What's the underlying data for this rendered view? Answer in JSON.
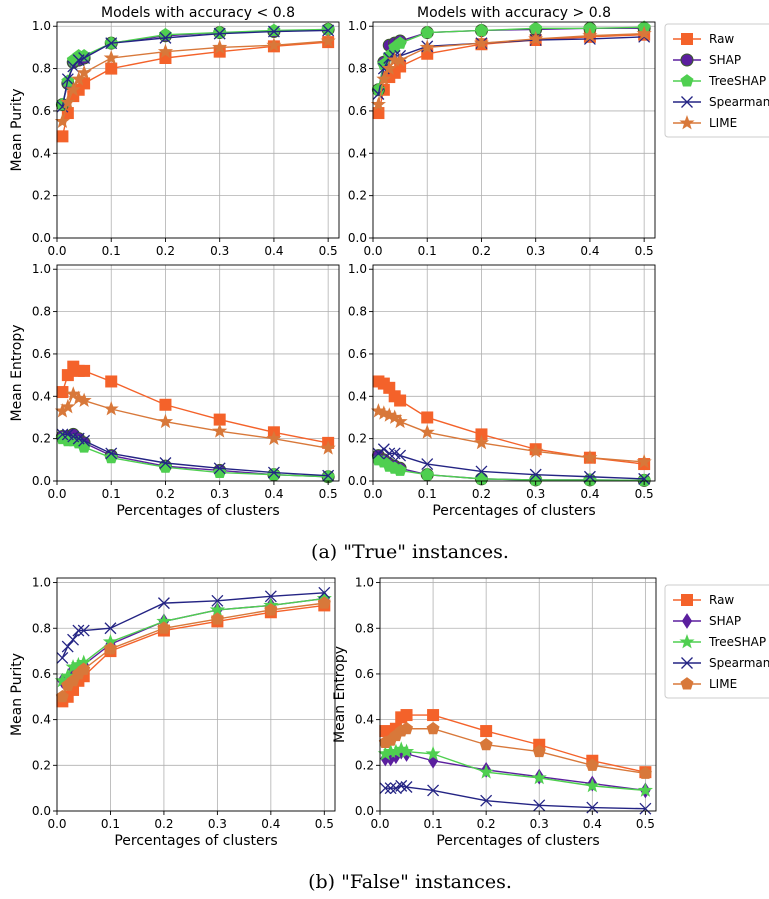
{
  "colors": {
    "Raw": "#f4622a",
    "SHAP": "#5b1f9e",
    "TreeSHAP": "#4fcf50",
    "Spearman": "#242484",
    "LIME": "#d8783a"
  },
  "captions": {
    "a": "(a) \"True\" instances.",
    "b": "(b) \"False\" instances."
  },
  "chart_data": [
    {
      "id": "a-purity-low",
      "type": "line",
      "title": "Models with accuracy < 0.8",
      "xlabel": "",
      "ylabel": "Mean Purity",
      "xlim": [
        0,
        0.52
      ],
      "ylim": [
        0,
        1.02
      ],
      "xticks": [
        0.0,
        0.1,
        0.2,
        0.3,
        0.4,
        0.5
      ],
      "yticks": [
        0.0,
        0.2,
        0.4,
        0.6,
        0.8,
        1.0
      ],
      "grid": true,
      "legend": "right-outside",
      "markers": {
        "Raw": "square",
        "SHAP": "circle",
        "TreeSHAP": "pentagon",
        "Spearman": "x",
        "LIME": "star"
      },
      "x": [
        0.01,
        0.02,
        0.03,
        0.04,
        0.05,
        0.1,
        0.2,
        0.3,
        0.4,
        0.5
      ],
      "series": [
        {
          "name": "Raw",
          "values": [
            0.48,
            0.59,
            0.67,
            0.7,
            0.73,
            0.8,
            0.85,
            0.88,
            0.905,
            0.925
          ]
        },
        {
          "name": "SHAP",
          "values": [
            0.63,
            0.73,
            0.83,
            0.84,
            0.85,
            0.92,
            0.955,
            0.97,
            0.975,
            0.985
          ]
        },
        {
          "name": "TreeSHAP",
          "values": [
            0.63,
            0.74,
            0.84,
            0.86,
            0.86,
            0.92,
            0.96,
            0.97,
            0.98,
            0.985
          ]
        },
        {
          "name": "Spearman",
          "values": [
            0.62,
            0.75,
            0.81,
            0.84,
            0.85,
            0.92,
            0.945,
            0.965,
            0.975,
            0.98
          ]
        },
        {
          "name": "LIME",
          "values": [
            0.55,
            0.64,
            0.7,
            0.75,
            0.78,
            0.85,
            0.88,
            0.9,
            0.91,
            0.93
          ]
        }
      ]
    },
    {
      "id": "a-purity-high",
      "type": "line",
      "title": "Models with accuracy > 0.8",
      "xlabel": "",
      "ylabel": "",
      "xlim": [
        0,
        0.52
      ],
      "ylim": [
        0,
        1.02
      ],
      "xticks": [
        0.0,
        0.1,
        0.2,
        0.3,
        0.4,
        0.5
      ],
      "yticks": [
        0.0,
        0.2,
        0.4,
        0.6,
        0.8,
        1.0
      ],
      "grid": true,
      "markers": {
        "Raw": "square",
        "SHAP": "circle",
        "TreeSHAP": "pentagon",
        "Spearman": "x",
        "LIME": "star"
      },
      "x": [
        0.01,
        0.02,
        0.03,
        0.04,
        0.05,
        0.1,
        0.2,
        0.3,
        0.4,
        0.5
      ],
      "series": [
        {
          "name": "Raw",
          "values": [
            0.59,
            0.7,
            0.76,
            0.78,
            0.81,
            0.87,
            0.915,
            0.935,
            0.95,
            0.96
          ]
        },
        {
          "name": "SHAP",
          "values": [
            0.7,
            0.83,
            0.91,
            0.92,
            0.93,
            0.97,
            0.98,
            0.985,
            0.99,
            0.99
          ]
        },
        {
          "name": "TreeSHAP",
          "values": [
            0.7,
            0.82,
            0.86,
            0.9,
            0.92,
            0.97,
            0.98,
            0.99,
            0.99,
            0.995
          ]
        },
        {
          "name": "Spearman",
          "values": [
            0.68,
            0.8,
            0.85,
            0.86,
            0.86,
            0.905,
            0.92,
            0.935,
            0.94,
            0.95
          ]
        },
        {
          "name": "LIME",
          "values": [
            0.63,
            0.75,
            0.8,
            0.84,
            0.84,
            0.9,
            0.92,
            0.94,
            0.955,
            0.965
          ]
        }
      ]
    },
    {
      "id": "a-entropy-low",
      "type": "line",
      "title": "",
      "xlabel": "Percentages of clusters",
      "ylabel": "Mean Entropy",
      "xlim": [
        0,
        0.52
      ],
      "ylim": [
        0,
        1.02
      ],
      "xticks": [
        0.0,
        0.1,
        0.2,
        0.3,
        0.4,
        0.5
      ],
      "yticks": [
        0.0,
        0.2,
        0.4,
        0.6,
        0.8,
        1.0
      ],
      "grid": true,
      "markers": {
        "Raw": "square",
        "SHAP": "circle",
        "TreeSHAP": "pentagon",
        "Spearman": "x",
        "LIME": "star"
      },
      "x": [
        0.01,
        0.02,
        0.03,
        0.04,
        0.05,
        0.1,
        0.2,
        0.3,
        0.4,
        0.5
      ],
      "series": [
        {
          "name": "Raw",
          "values": [
            0.42,
            0.5,
            0.54,
            0.52,
            0.52,
            0.47,
            0.36,
            0.29,
            0.23,
            0.18
          ]
        },
        {
          "name": "SHAP",
          "values": [
            0.21,
            0.21,
            0.22,
            0.2,
            0.18,
            0.12,
            0.07,
            0.05,
            0.03,
            0.02
          ]
        },
        {
          "name": "TreeSHAP",
          "values": [
            0.2,
            0.19,
            0.19,
            0.18,
            0.16,
            0.11,
            0.065,
            0.04,
            0.03,
            0.02
          ]
        },
        {
          "name": "Spearman",
          "values": [
            0.22,
            0.22,
            0.21,
            0.2,
            0.19,
            0.13,
            0.085,
            0.06,
            0.04,
            0.025
          ]
        },
        {
          "name": "LIME",
          "values": [
            0.33,
            0.35,
            0.41,
            0.39,
            0.38,
            0.34,
            0.28,
            0.235,
            0.2,
            0.155
          ]
        }
      ]
    },
    {
      "id": "a-entropy-high",
      "type": "line",
      "title": "",
      "xlabel": "Percentages of clusters",
      "ylabel": "",
      "xlim": [
        0,
        0.52
      ],
      "ylim": [
        0,
        1.02
      ],
      "xticks": [
        0.0,
        0.1,
        0.2,
        0.3,
        0.4,
        0.5
      ],
      "yticks": [
        0.0,
        0.2,
        0.4,
        0.6,
        0.8,
        1.0
      ],
      "grid": true,
      "markers": {
        "Raw": "square",
        "SHAP": "circle",
        "TreeSHAP": "pentagon",
        "Spearman": "x",
        "LIME": "star"
      },
      "x": [
        0.01,
        0.02,
        0.03,
        0.04,
        0.05,
        0.1,
        0.2,
        0.3,
        0.4,
        0.5
      ],
      "series": [
        {
          "name": "Raw",
          "values": [
            0.47,
            0.46,
            0.44,
            0.4,
            0.38,
            0.3,
            0.22,
            0.15,
            0.11,
            0.08
          ]
        },
        {
          "name": "SHAP",
          "values": [
            0.12,
            0.1,
            0.08,
            0.07,
            0.06,
            0.03,
            0.01,
            0.005,
            0.005,
            0.003
          ]
        },
        {
          "name": "TreeSHAP",
          "values": [
            0.1,
            0.09,
            0.07,
            0.06,
            0.05,
            0.03,
            0.01,
            0.005,
            0.005,
            0.003
          ]
        },
        {
          "name": "Spearman",
          "values": [
            0.13,
            0.15,
            0.13,
            0.13,
            0.12,
            0.08,
            0.045,
            0.03,
            0.02,
            0.01
          ]
        },
        {
          "name": "LIME",
          "values": [
            0.33,
            0.32,
            0.31,
            0.3,
            0.28,
            0.23,
            0.18,
            0.14,
            0.11,
            0.09
          ]
        }
      ]
    },
    {
      "id": "b-purity",
      "type": "line",
      "title": "",
      "xlabel": "Percentages of clusters",
      "ylabel": "Mean Purity",
      "xlim": [
        0,
        0.52
      ],
      "ylim": [
        0,
        1.02
      ],
      "xticks": [
        0.0,
        0.1,
        0.2,
        0.3,
        0.4,
        0.5
      ],
      "yticks": [
        0.0,
        0.2,
        0.4,
        0.6,
        0.8,
        1.0
      ],
      "grid": true,
      "markers": {
        "Raw": "square",
        "SHAP": "diamond",
        "TreeSHAP": "star",
        "Spearman": "x",
        "LIME": "pentagon"
      },
      "x": [
        0.01,
        0.02,
        0.03,
        0.04,
        0.05,
        0.1,
        0.2,
        0.3,
        0.4,
        0.5
      ],
      "series": [
        {
          "name": "Raw",
          "values": [
            0.48,
            0.5,
            0.53,
            0.57,
            0.59,
            0.7,
            0.79,
            0.83,
            0.87,
            0.9
          ]
        },
        {
          "name": "SHAP",
          "values": [
            0.57,
            0.58,
            0.62,
            0.63,
            0.64,
            0.73,
            0.83,
            0.88,
            0.9,
            0.93
          ]
        },
        {
          "name": "TreeSHAP",
          "values": [
            0.57,
            0.59,
            0.63,
            0.64,
            0.65,
            0.74,
            0.83,
            0.88,
            0.9,
            0.93
          ]
        },
        {
          "name": "Spearman",
          "values": [
            0.67,
            0.72,
            0.75,
            0.79,
            0.79,
            0.8,
            0.91,
            0.92,
            0.94,
            0.955
          ]
        },
        {
          "name": "LIME",
          "values": [
            0.5,
            0.55,
            0.57,
            0.6,
            0.62,
            0.71,
            0.8,
            0.84,
            0.88,
            0.91
          ]
        }
      ]
    },
    {
      "id": "b-entropy",
      "type": "line",
      "title": "",
      "xlabel": "Percentages of clusters",
      "ylabel": "Mean Entropy",
      "xlim": [
        0,
        0.52
      ],
      "ylim": [
        0,
        1.02
      ],
      "xticks": [
        0.0,
        0.1,
        0.2,
        0.3,
        0.4,
        0.5
      ],
      "yticks": [
        0.0,
        0.2,
        0.4,
        0.6,
        0.8,
        1.0
      ],
      "grid": true,
      "legend": "right-outside",
      "markers": {
        "Raw": "square",
        "SHAP": "diamond",
        "TreeSHAP": "star",
        "Spearman": "x",
        "LIME": "pentagon"
      },
      "x": [
        0.01,
        0.02,
        0.03,
        0.04,
        0.05,
        0.1,
        0.2,
        0.3,
        0.4,
        0.5
      ],
      "series": [
        {
          "name": "Raw",
          "values": [
            0.35,
            0.34,
            0.36,
            0.41,
            0.42,
            0.42,
            0.35,
            0.29,
            0.22,
            0.17
          ]
        },
        {
          "name": "SHAP",
          "values": [
            0.23,
            0.23,
            0.24,
            0.26,
            0.25,
            0.22,
            0.18,
            0.15,
            0.12,
            0.09
          ]
        },
        {
          "name": "TreeSHAP",
          "values": [
            0.25,
            0.26,
            0.26,
            0.27,
            0.26,
            0.25,
            0.17,
            0.145,
            0.11,
            0.09
          ]
        },
        {
          "name": "Spearman",
          "values": [
            0.1,
            0.1,
            0.1,
            0.11,
            0.105,
            0.09,
            0.045,
            0.025,
            0.015,
            0.01
          ]
        },
        {
          "name": "LIME",
          "values": [
            0.3,
            0.31,
            0.33,
            0.35,
            0.36,
            0.36,
            0.29,
            0.26,
            0.2,
            0.165
          ]
        }
      ]
    }
  ]
}
